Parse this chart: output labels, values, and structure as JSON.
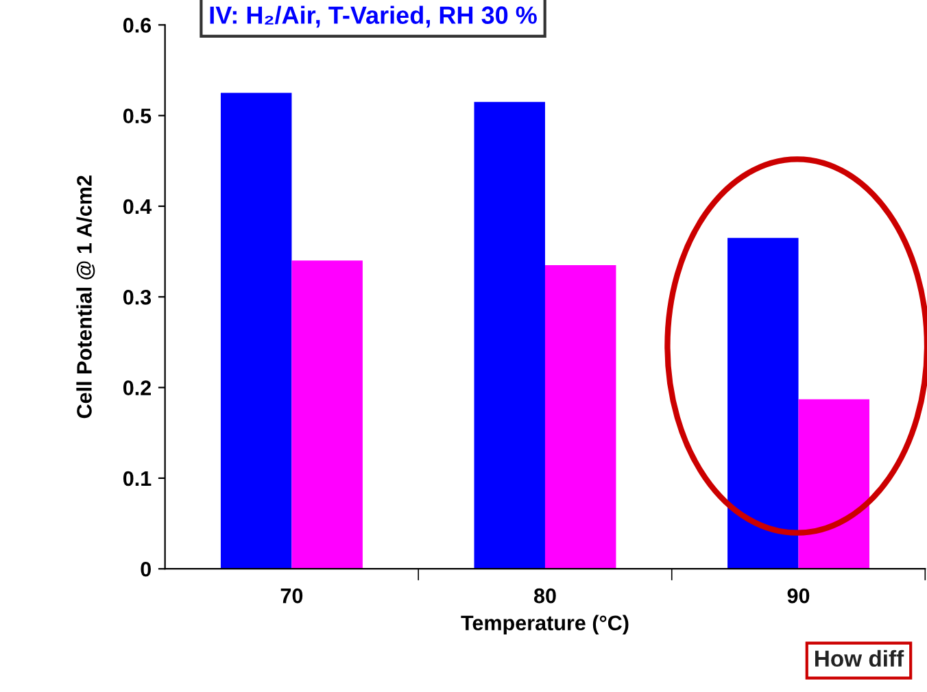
{
  "chart_data": {
    "type": "bar",
    "title": "IV: H₂/Air, T-Varied, RH 30 %",
    "xlabel": "Temperature (°C)",
    "ylabel": "Cell Potential @ 1 A/cm2",
    "categories": [
      "70",
      "80",
      "90"
    ],
    "series": [
      {
        "color": "#0000ff",
        "values": [
          0.525,
          0.515,
          0.365
        ]
      },
      {
        "color": "#ff00ff",
        "values": [
          0.34,
          0.335,
          0.187
        ]
      }
    ],
    "ylim": [
      0,
      0.6
    ],
    "yticks": [
      0,
      0.1,
      0.2,
      0.3,
      0.4,
      0.5,
      0.6
    ],
    "grid": false,
    "legend": false,
    "annotations": [
      "How diff"
    ]
  }
}
